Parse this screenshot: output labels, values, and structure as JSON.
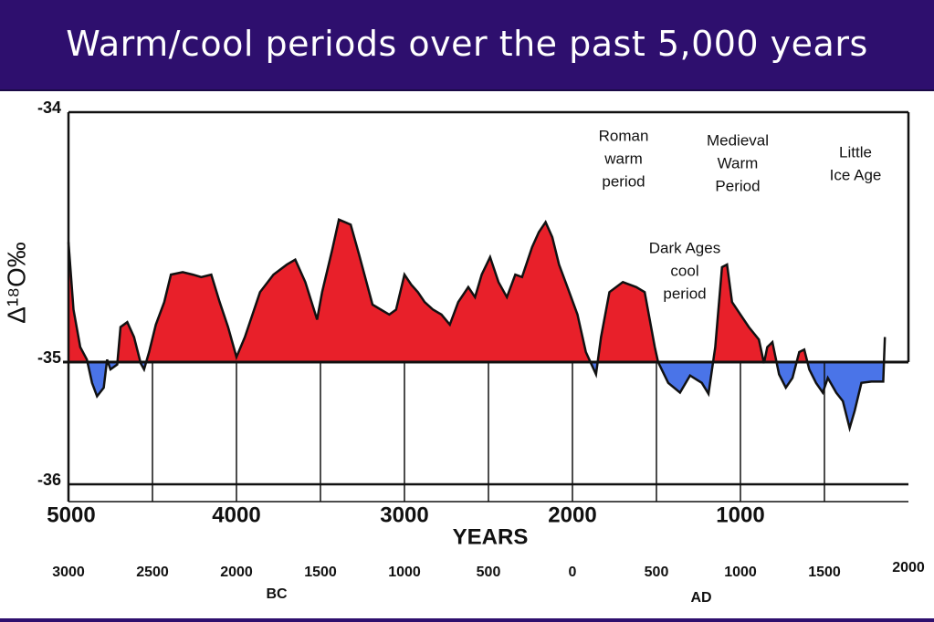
{
  "chart_data": {
    "type": "area",
    "title": "Warm/cool periods over the past 5,000 years",
    "ylabel": "Δ¹⁸O‰",
    "xlabel": "YEARS",
    "x2label_left": "BC",
    "x2label_right": "AD",
    "baseline": -35,
    "colors": {
      "above": "#e8202a",
      "below": "#4a74e8",
      "line": "#111111"
    },
    "xlim": [
      5000,
      0
    ],
    "xticks": [
      5000,
      4000,
      3000,
      2000,
      1000
    ],
    "xminor": [
      4500,
      3500,
      2500,
      1500,
      500
    ],
    "x2lim": [
      -3000,
      2000
    ],
    "x2ticks": [
      {
        "value": -3000,
        "label": "3000"
      },
      {
        "value": -2500,
        "label": "2500"
      },
      {
        "value": -2000,
        "label": "2000"
      },
      {
        "value": -1500,
        "label": "1500"
      },
      {
        "value": -1000,
        "label": "1000"
      },
      {
        "value": -500,
        "label": "500"
      },
      0,
      500,
      1000,
      1500,
      2000
    ],
    "ylim": [
      -36,
      -34
    ],
    "yticks": [
      -34,
      -35,
      -36
    ],
    "annotations": [
      {
        "lines": [
          "Roman",
          "warm",
          "period"
        ]
      },
      {
        "lines": [
          "Medieval",
          "Warm",
          "Period"
        ]
      },
      {
        "lines": [
          "Little",
          "Ice Age"
        ]
      },
      {
        "lines": [
          "Dark Ages",
          "cool",
          "period"
        ]
      }
    ],
    "x": [
      5000,
      4970,
      4930,
      4890,
      4860,
      4830,
      4790,
      4770,
      4750,
      4710,
      4690,
      4650,
      4610,
      4570,
      4550,
      4520,
      4480,
      4430,
      4390,
      4320,
      4260,
      4210,
      4150,
      4100,
      4050,
      4000,
      3950,
      3860,
      3780,
      3700,
      3650,
      3590,
      3520,
      3490,
      3430,
      3390,
      3320,
      3270,
      3190,
      3140,
      3090,
      3050,
      3000,
      2960,
      2920,
      2880,
      2830,
      2780,
      2730,
      2680,
      2620,
      2580,
      2540,
      2490,
      2440,
      2390,
      2340,
      2300,
      2240,
      2200,
      2160,
      2120,
      2080,
      2030,
      1970,
      1920,
      1860,
      1830,
      1780,
      1700,
      1620,
      1570,
      1510,
      1490,
      1430,
      1360,
      1300,
      1230,
      1190,
      1150,
      1110,
      1080,
      1050,
      1000,
      950,
      890,
      860,
      840,
      810,
      770,
      730,
      690,
      650,
      620,
      590,
      550,
      510,
      480,
      430,
      390,
      350,
      320,
      280,
      220,
      150,
      140
    ],
    "values": [
      -34.52,
      -34.79,
      -34.94,
      -34.99,
      -35.17,
      -35.28,
      -35.21,
      -34.99,
      -35.06,
      -35.02,
      -34.86,
      -34.84,
      -34.9,
      -35.01,
      -35.06,
      -34.96,
      -34.85,
      -34.76,
      -34.65,
      -34.64,
      -34.65,
      -34.66,
      -34.65,
      -34.76,
      -34.86,
      -34.98,
      -34.9,
      -34.72,
      -34.65,
      -34.61,
      -34.59,
      -34.68,
      -34.83,
      -34.72,
      -34.55,
      -34.43,
      -34.45,
      -34.57,
      -34.77,
      -34.79,
      -34.81,
      -34.79,
      -34.65,
      -34.69,
      -34.72,
      -34.76,
      -34.79,
      -34.81,
      -34.85,
      -34.76,
      -34.7,
      -34.74,
      -34.65,
      -34.58,
      -34.68,
      -34.74,
      -34.65,
      -34.66,
      -34.54,
      -34.48,
      -34.44,
      -34.5,
      -34.61,
      -34.7,
      -34.81,
      -34.96,
      -35.1,
      -34.9,
      -34.72,
      -34.68,
      -34.7,
      -34.72,
      -34.94,
      -35.0,
      -35.17,
      -35.25,
      -35.11,
      -35.17,
      -35.26,
      -34.94,
      -34.62,
      -34.61,
      -34.76,
      -34.81,
      -34.86,
      -34.91,
      -35.01,
      -34.94,
      -34.92,
      -35.1,
      -35.21,
      -35.13,
      -34.96,
      -34.95,
      -35.06,
      -35.17,
      -35.25,
      -35.13,
      -35.25,
      -35.32,
      -35.54,
      -35.4,
      -35.17,
      -35.16,
      -35.16,
      -34.9
    ]
  }
}
